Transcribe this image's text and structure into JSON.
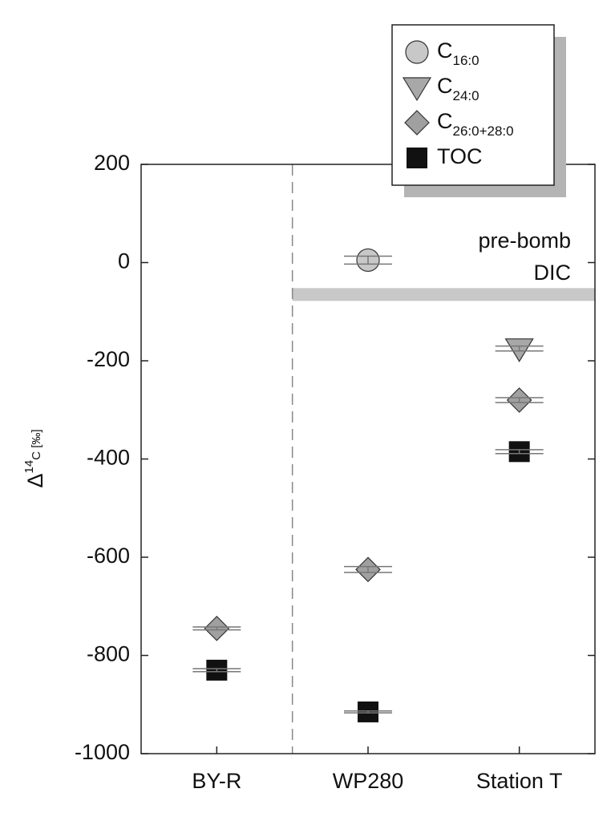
{
  "chart_data": {
    "type": "scatter",
    "categories": [
      "BY-R",
      "WP280",
      "Station T"
    ],
    "series": [
      {
        "name": "C16:0",
        "marker": "circle",
        "color": "#c8c8c8",
        "values": [
          null,
          5,
          null
        ],
        "errors": [
          null,
          8,
          null
        ]
      },
      {
        "name": "C24:0",
        "marker": "triangle",
        "color": "#a8a8a8",
        "values": [
          null,
          null,
          -175
        ],
        "errors": [
          null,
          null,
          5
        ]
      },
      {
        "name": "C26:0+28:0",
        "marker": "diamond",
        "color": "#a0a0a0",
        "values": [
          -745,
          -625,
          -280
        ],
        "errors": [
          3,
          6,
          5
        ]
      },
      {
        "name": "TOC",
        "marker": "square",
        "color": "#111111",
        "values": [
          -830,
          -915,
          -385
        ],
        "errors": [
          3,
          2,
          4
        ]
      }
    ],
    "ylabel": "Δ14C [‰]",
    "ylim": [
      -1000,
      200
    ],
    "yticks": [
      -1000,
      -800,
      -600,
      -400,
      -200,
      0,
      200
    ],
    "reference_value": -65,
    "reference_text": [
      "pre-bomb",
      "DIC"
    ],
    "reference_color": "#c8c8c8"
  }
}
